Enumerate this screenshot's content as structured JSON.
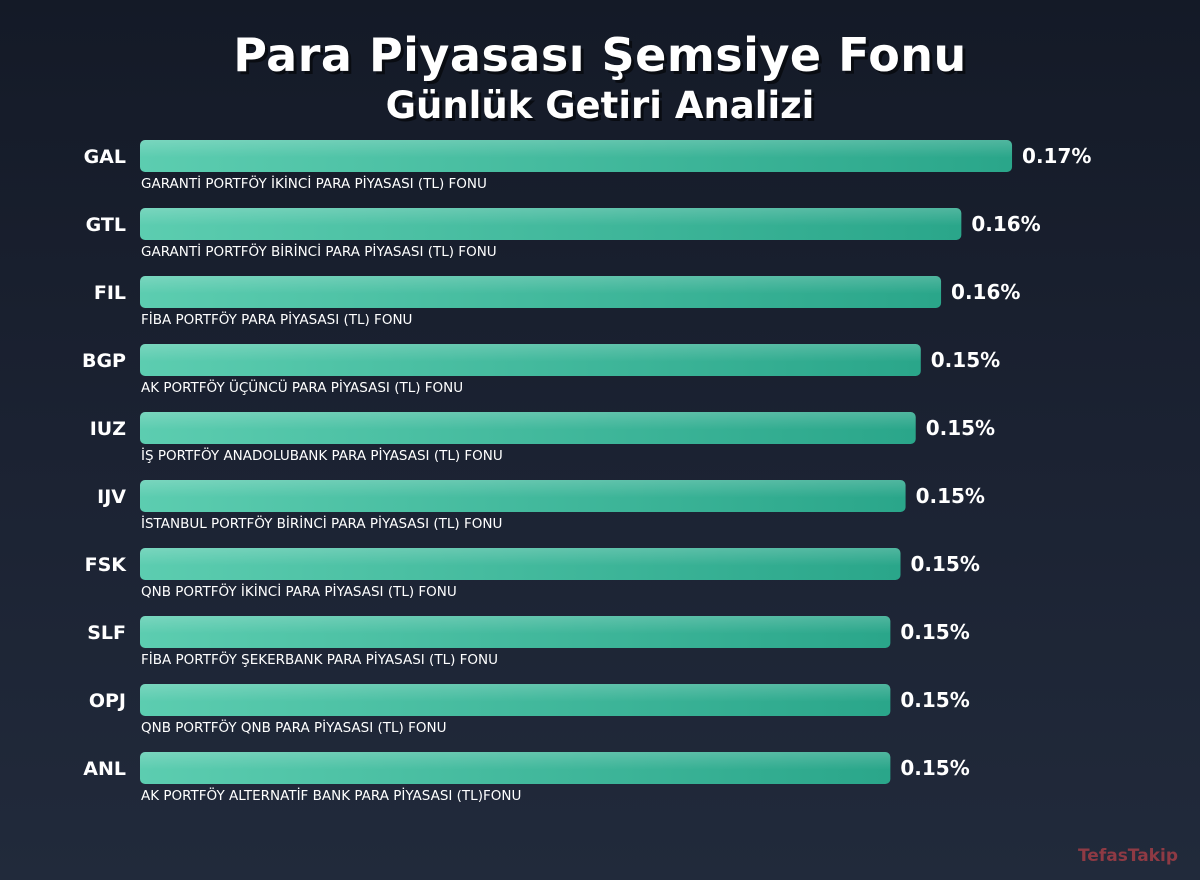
{
  "chart_data": {
    "type": "bar",
    "orientation": "horizontal",
    "title": "Para Piyasası Şemsiye Fonu",
    "subtitle": "Günlük Getiri Analizi",
    "unit": "%",
    "bar_color": "#3dbf9f",
    "categories": [
      "GAL",
      "GTL",
      "FIL",
      "BGP",
      "IUZ",
      "IJV",
      "FSK",
      "SLF",
      "OPJ",
      "ANL"
    ],
    "fund_names": [
      "GARANTİ PORTFÖY İKİNCİ PARA PİYASASI (TL) FONU",
      "GARANTİ PORTFÖY BİRİNCİ PARA PİYASASI (TL) FONU",
      "FİBA PORTFÖY PARA PİYASASI (TL) FONU",
      "AK PORTFÖY ÜÇÜNCÜ PARA PİYASASI (TL) FONU",
      "İŞ PORTFÖY ANADOLUBANK PARA PİYASASI (TL) FONU",
      "İSTANBUL PORTFÖY BİRİNCİ PARA PİYASASI (TL) FONU",
      "QNB PORTFÖY İKİNCİ PARA PİYASASI (TL) FONU",
      "FİBA PORTFÖY ŞEKERBANK PARA PİYASASI (TL) FONU",
      "QNB PORTFÖY QNB PARA PİYASASI (TL) FONU",
      "AK PORTFÖY ALTERNATİF BANK PARA PİYASASI (TL)FONU"
    ],
    "values": [
      0.172,
      0.162,
      0.158,
      0.154,
      0.153,
      0.151,
      0.15,
      0.148,
      0.148,
      0.148
    ],
    "value_labels": [
      "0.17%",
      "0.16%",
      "0.16%",
      "0.15%",
      "0.15%",
      "0.15%",
      "0.15%",
      "0.15%",
      "0.15%",
      "0.15%"
    ]
  },
  "watermark": "TefasTakip"
}
